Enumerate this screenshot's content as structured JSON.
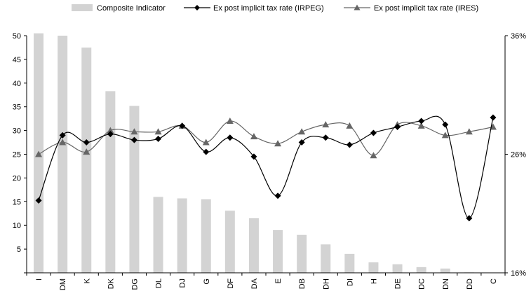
{
  "chart_data": {
    "type": "bar",
    "categories": [
      "I",
      "DM",
      "K",
      "DK",
      "DG",
      "DL",
      "DJ",
      "G",
      "DF",
      "DA",
      "E",
      "DB",
      "DH",
      "DI",
      "H",
      "DE",
      "DC",
      "DN",
      "DD",
      "C"
    ],
    "legend_position": "top",
    "grid": false,
    "y_left": {
      "ylim": [
        0,
        50
      ],
      "ticks": [
        "",
        "5",
        "10",
        "15",
        "20",
        "25",
        "30",
        "35",
        "40",
        "45",
        "50"
      ]
    },
    "y_right": {
      "ylim": [
        16,
        36
      ],
      "ticks": [
        "16%",
        "26%",
        "36%"
      ]
    },
    "series": [
      {
        "name": "Composite Indicator",
        "kind": "bar",
        "axis": "left",
        "color": "#d3d3d3",
        "values": [
          50.5,
          50.0,
          47.5,
          38.3,
          35.2,
          16.0,
          15.7,
          15.5,
          13.1,
          11.5,
          9.0,
          8.0,
          6.0,
          4.0,
          2.2,
          1.8,
          1.2,
          0.9,
          0.1,
          0.0
        ]
      },
      {
        "name": "Ex post implicit tax rate (IRPEG)",
        "kind": "line",
        "axis": "right",
        "color": "#000000",
        "marker": "diamond",
        "values": [
          22.1,
          27.6,
          27.0,
          27.7,
          27.2,
          27.3,
          28.4,
          26.2,
          27.4,
          25.8,
          22.5,
          27.0,
          27.4,
          26.8,
          27.8,
          28.3,
          28.8,
          28.5,
          20.6,
          29.1
        ]
      },
      {
        "name": "Ex post implicit tax rate (IRES)",
        "kind": "line",
        "axis": "right",
        "color": "#666666",
        "marker": "triangle",
        "values": [
          26.0,
          27.0,
          26.2,
          28.0,
          27.9,
          27.9,
          28.4,
          27.0,
          28.8,
          27.5,
          26.9,
          27.9,
          28.5,
          28.4,
          25.9,
          28.5,
          28.4,
          27.6,
          27.9,
          28.3
        ]
      }
    ]
  }
}
